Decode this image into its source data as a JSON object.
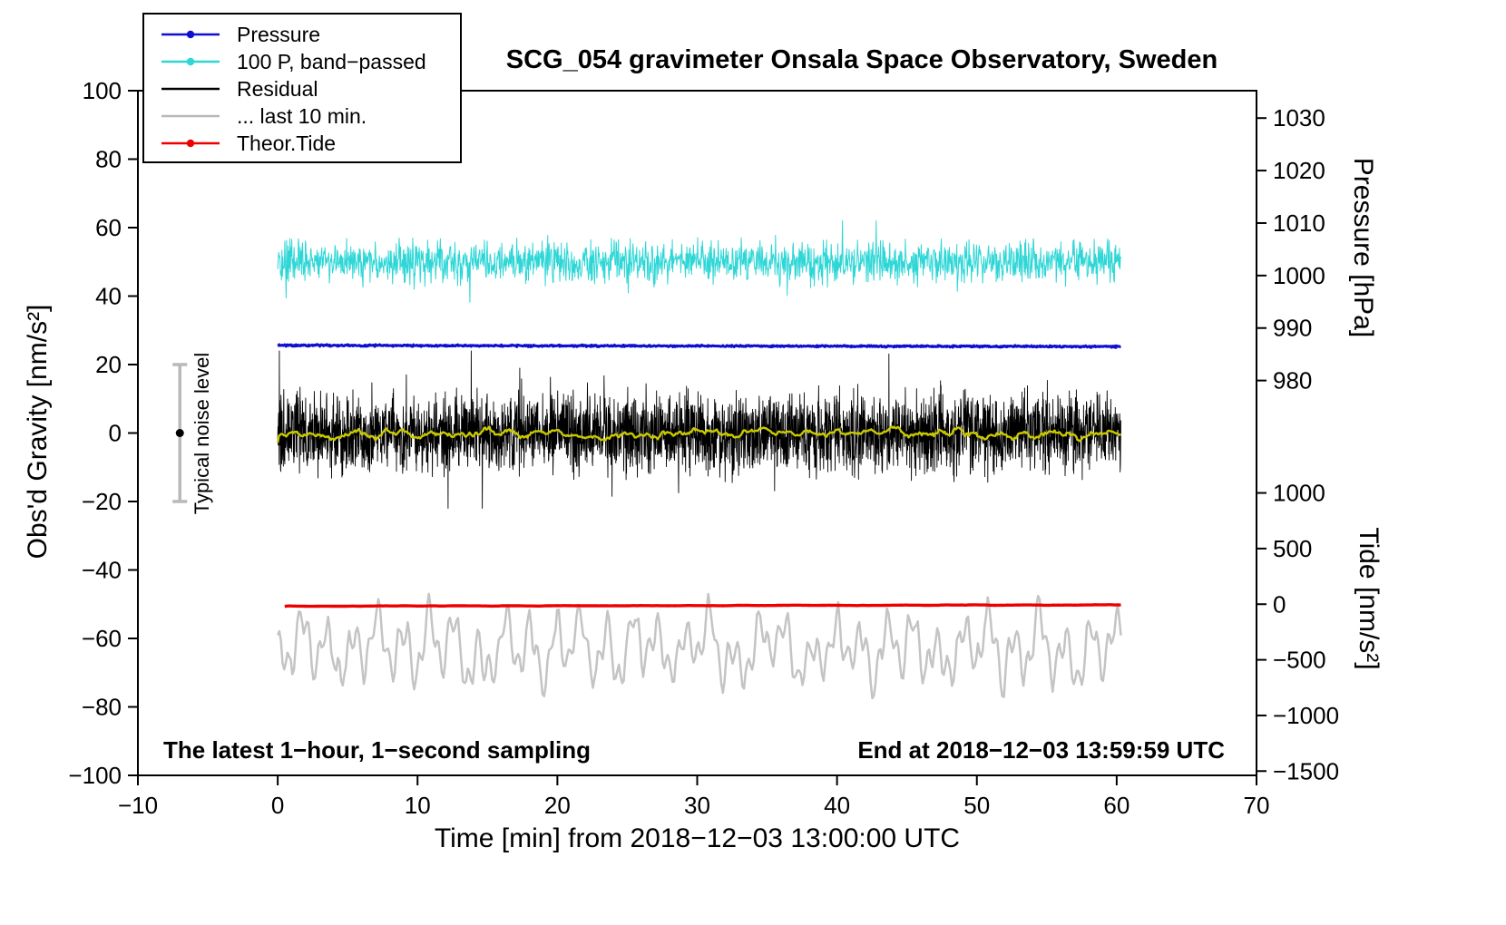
{
  "title": "SCG_054 gravimeter Onsala Space Observatory, Sweden",
  "annotations": {
    "sampling_note": "The latest 1−hour, 1−second sampling",
    "end_note": "End at 2018−12−03 13:59:59 UTC",
    "noise_label": "Typical noise level"
  },
  "legend": {
    "items": [
      {
        "label": "Pressure",
        "color": "#0f0fd0",
        "dot": true
      },
      {
        "label": "100 P, band−passed",
        "color": "#2fd6d6",
        "dot": true
      },
      {
        "label": "Residual",
        "color": "#000000",
        "dot": false
      },
      {
        "label": "... last 10 min.",
        "color": "#b9b9b9",
        "dot": false
      },
      {
        "label": "Theor.Tide",
        "color": "#ee0000",
        "dot": true
      }
    ]
  },
  "chart_data": {
    "type": "line",
    "title": "SCG_054 gravimeter Onsala Space Observatory, Sweden",
    "axes": {
      "x": {
        "label": "Time [min] from 2018−12−03 13:00:00 UTC",
        "min": -10,
        "max": 70,
        "ticks": [
          -10,
          0,
          10,
          20,
          30,
          40,
          50,
          60,
          70
        ]
      },
      "y_gravity": {
        "label": "Obs'd Gravity [nm/s²]",
        "min": -100,
        "max": 100,
        "ticks": [
          -100,
          -80,
          -60,
          -40,
          -20,
          0,
          20,
          40,
          60,
          80,
          100
        ]
      },
      "y_pressure": {
        "label": "Pressure [hPa]",
        "ticks": [
          1030,
          1020,
          1010,
          1000,
          990,
          980
        ],
        "gravity_of_1030": 92,
        "gravity_per_hPa": 1.5333
      },
      "y_tide": {
        "label": "Tide [nm/s²]",
        "ticks": [
          1000,
          500,
          0,
          -500,
          -1000,
          -1500
        ],
        "gravity_of_0": -50,
        "gravity_per_unit": 0.0325
      }
    },
    "noise_bar": {
      "x": -7,
      "gravity_min": -20,
      "gravity_max": 20,
      "center": 0,
      "bar_color": "#b9b9b9",
      "dot_color": "#000000"
    },
    "series": [
      {
        "name": "residual-last-10-min",
        "legend": "... last 10 min.",
        "color": "#c4c4c4",
        "width": 2.5,
        "gen": "wavy",
        "points": 520,
        "x_start": 0,
        "x_end": 60.3,
        "base": -63,
        "slope": 0,
        "amp": 9.5,
        "min": -85,
        "max": -43
      },
      {
        "name": "pressure-bandpassed-x100",
        "legend": "100 P, band−passed",
        "color": "#2fd6d6",
        "width": 1.0,
        "gen": "spiky",
        "points": 1800,
        "x_start": 0,
        "x_end": 60.3,
        "base": 50,
        "slope": 0,
        "amp": 3.0,
        "min": 36,
        "max": 62
      },
      {
        "name": "pressure",
        "legend": "Pressure",
        "color": "#0f0fd0",
        "width": 3.0,
        "gen": "noise",
        "points": 1200,
        "x_start": 0,
        "x_end": 60.3,
        "base": 25.6,
        "slope": -0.35,
        "amp": 0.12
      },
      {
        "name": "residual",
        "legend": "Residual",
        "color": "#000000",
        "width": 0.9,
        "gen": "spiky",
        "points": 3600,
        "x_start": 0,
        "x_end": 60.3,
        "base": 0,
        "slope": 0,
        "amp": 5.5,
        "min": -22,
        "max": 24
      },
      {
        "name": "residual-smoothed",
        "legend": "",
        "color": "#c9c900",
        "width": 2.4,
        "gen": "smooth",
        "points": 700,
        "x_start": 0,
        "x_end": 60.3,
        "base": -0.2,
        "slope": 0,
        "amp": 1.0
      },
      {
        "name": "theoretical-tide",
        "legend": "Theor.Tide",
        "color": "#ee0000",
        "width": 3.4,
        "gen": "smooth",
        "points": 400,
        "x_start": 0.5,
        "x_end": 60.3,
        "base": -50.6,
        "slope": 0.4,
        "amp": 0.05
      }
    ]
  }
}
